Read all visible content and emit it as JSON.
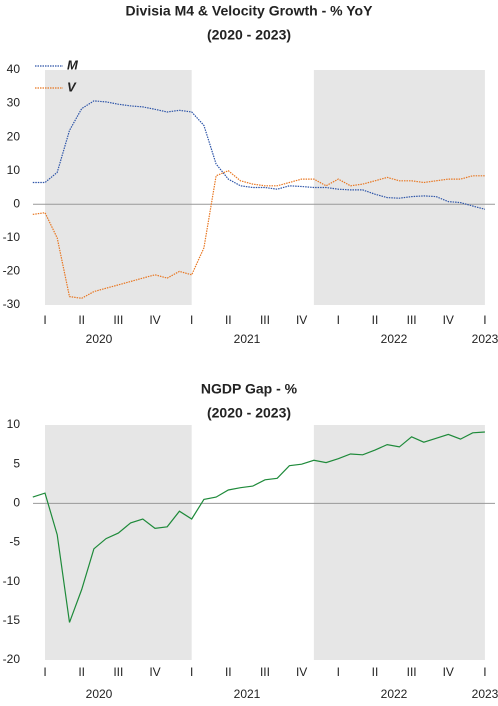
{
  "chart_data": [
    {
      "type": "line",
      "title": "Divisia M4 & Velocity Growth - % YoY",
      "subtitle": "(2020 - 2023)",
      "categories": [
        null,
        "I",
        null,
        null,
        "II",
        null,
        null,
        "III",
        null,
        null,
        "IV",
        null,
        null,
        "I",
        null,
        null,
        "II",
        null,
        null,
        "III",
        null,
        null,
        "IV",
        null,
        null,
        "I",
        null,
        null,
        "II",
        null,
        null,
        "III",
        null,
        null,
        "IV",
        null,
        null,
        "I"
      ],
      "years": [
        "2020",
        "2021",
        "2022",
        "2023"
      ],
      "series": [
        {
          "name": "M",
          "color": "#2e55a8",
          "values": [
            6.5,
            6.5,
            9.5,
            22,
            28.5,
            30.8,
            30.5,
            29.8,
            29.3,
            29,
            28.3,
            27.5,
            28,
            27.5,
            23.5,
            12,
            7.5,
            5.5,
            5,
            5,
            4.5,
            5.5,
            5.3,
            5,
            5,
            4.5,
            4.3,
            4.3,
            3,
            2,
            1.8,
            2.3,
            2.5,
            2.3,
            0.8,
            0.5,
            -0.5,
            -1.5
          ]
        },
        {
          "name": "V",
          "color": "#e87722",
          "values": [
            -3,
            -2.5,
            -10,
            -27.5,
            -28,
            -26,
            -25,
            -24,
            -23,
            -22,
            -21,
            -22,
            -20,
            -21,
            -13,
            8.5,
            10,
            7,
            6,
            5.5,
            5.5,
            6.5,
            7.5,
            7.5,
            5.5,
            7.5,
            5.5,
            6,
            7,
            8,
            7,
            7,
            6.5,
            7,
            7.5,
            7.5,
            8.5,
            8.5
          ]
        }
      ],
      "ylim": [
        -30,
        40
      ],
      "yticks": [
        -30,
        -20,
        -10,
        0,
        10,
        20,
        30,
        40
      ],
      "legend": "upper left"
    },
    {
      "type": "line",
      "title": "NGDP Gap - %",
      "subtitle": "(2020 - 2023)",
      "categories": [
        null,
        "I",
        null,
        null,
        "II",
        null,
        null,
        "III",
        null,
        null,
        "IV",
        null,
        null,
        "I",
        null,
        null,
        "II",
        null,
        null,
        "III",
        null,
        null,
        "IV",
        null,
        null,
        "I",
        null,
        null,
        "II",
        null,
        null,
        "III",
        null,
        null,
        "IV",
        null,
        null,
        "I"
      ],
      "years": [
        "2020",
        "2021",
        "2022",
        "2023"
      ],
      "series": [
        {
          "color": "#1e8a3a",
          "values": [
            0.8,
            1.3,
            -4,
            -15.2,
            -11,
            -5.8,
            -4.5,
            -3.8,
            -2.5,
            -2,
            -3.2,
            -3,
            -1,
            -2,
            0.5,
            0.8,
            1.7,
            2,
            2.2,
            3,
            3.2,
            4.8,
            5,
            5.5,
            5.2,
            5.7,
            6.3,
            6.2,
            6.8,
            7.5,
            7.2,
            8.5,
            7.8,
            8.3,
            8.8,
            8.2,
            9,
            9.1
          ]
        }
      ],
      "ylim": [
        -20,
        10
      ],
      "yticks": [
        -20,
        -15,
        -10,
        -5,
        0,
        5,
        10
      ]
    }
  ]
}
